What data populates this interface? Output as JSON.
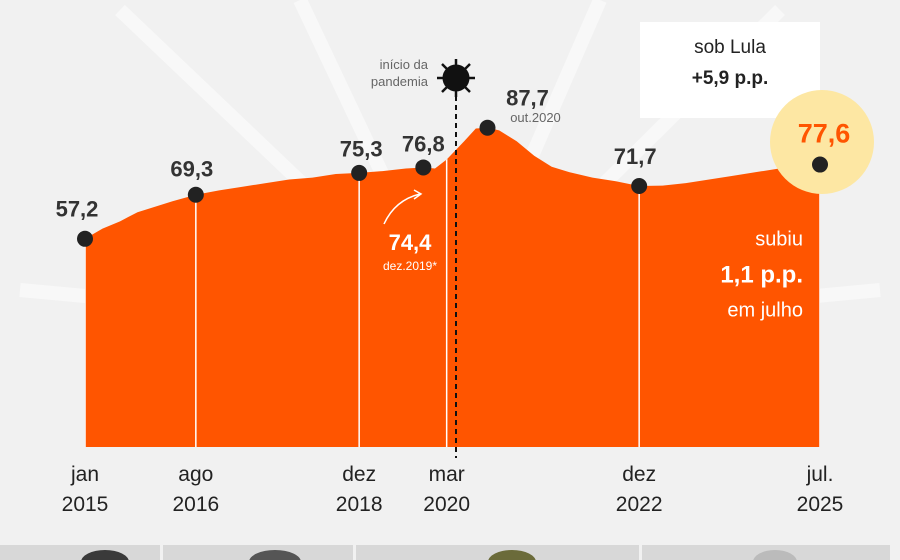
{
  "chart_data": {
    "type": "area",
    "color": "#ff5500",
    "x": [
      "2015-01",
      "2015-04",
      "2015-07",
      "2015-10",
      "2016-01",
      "2016-04",
      "2016-08",
      "2016-12",
      "2017-04",
      "2017-08",
      "2017-12",
      "2018-04",
      "2018-08",
      "2018-12",
      "2019-04",
      "2019-08",
      "2019-11",
      "2020-01",
      "2020-03",
      "2020-06",
      "2020-08",
      "2020-10",
      "2020-12",
      "2021-03",
      "2021-06",
      "2021-09",
      "2021-12",
      "2022-04",
      "2022-08",
      "2022-12",
      "2023-04",
      "2023-08",
      "2023-12",
      "2024-04",
      "2024-08",
      "2024-12",
      "2025-03",
      "2025-07"
    ],
    "values": [
      57.2,
      60,
      62,
      64.5,
      66,
      67.5,
      69.3,
      70.5,
      71.5,
      72.5,
      73.5,
      74,
      75,
      75.3,
      75.8,
      76.5,
      76.8,
      76.5,
      79,
      84,
      87.5,
      87.7,
      87,
      84,
      80,
      77,
      75.5,
      74,
      73,
      71.7,
      71.8,
      72.5,
      73.5,
      74.5,
      75.5,
      76.5,
      77.5,
      77.6
    ],
    "xlim": [
      "2015-01",
      "2025-07"
    ],
    "ylim": [
      0,
      100
    ],
    "xticks": [
      {
        "value": "2015-01",
        "label": "jan 2015"
      },
      {
        "value": "2016-08",
        "label": "ago 2016"
      },
      {
        "value": "2018-12",
        "label": "dez 2018"
      },
      {
        "value": "2020-03",
        "label": "mar 2020"
      },
      {
        "value": "2022-12",
        "label": "dez 2022"
      },
      {
        "value": "2025-07",
        "label": "jul. 2025"
      }
    ],
    "highlights": {
      "x": [
        "2015-01",
        "2016-08",
        "2018-12",
        "2019-11",
        "2020-10",
        "2022-12",
        "2025-07"
      ],
      "values": [
        57.2,
        69.3,
        75.3,
        76.8,
        87.7,
        71.7,
        77.6
      ],
      "value_labels": [
        "57,2",
        "69,3",
        "75,3",
        "76,8",
        "87,7",
        "71,7",
        "77,6"
      ]
    },
    "peak_date_label": "out.2020",
    "annotation": {
      "value": 74.4,
      "value_label": "74,4",
      "date_label": "dez.2019*"
    },
    "pandemic_label": "início da pandemia",
    "lula_box": {
      "title": "sob Lula",
      "text": "+5,9 p.p."
    },
    "change_note": [
      "subiu",
      "1,1 p.p.",
      "em julho"
    ]
  }
}
